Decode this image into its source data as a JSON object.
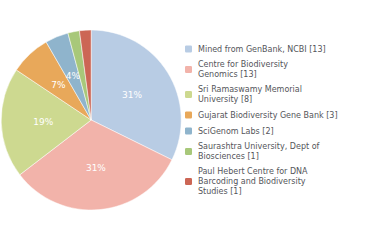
{
  "chart_data": {
    "type": "pie",
    "categories": [
      "Mined from GenBank, NCBI [13]",
      "Centre for Biodiversity\nGenomics [13]",
      "Sri Ramaswamy Memorial\nUniversity [8]",
      "Gujarat Biodiversity Gene Bank [3]",
      "SciGenom Labs [2]",
      "Saurashtra University, Dept of\nBiosciences [1]",
      "Paul Hebert Centre for DNA\nBarcoding and Biodiversity\nStudies [1]"
    ],
    "values": [
      31,
      31,
      19,
      7,
      4,
      2,
      2
    ],
    "value_labels": [
      "31%",
      "31%",
      "19%",
      "7%",
      "4%",
      null,
      null
    ],
    "colors": [
      "#b8cce4",
      "#f2b3aa",
      "#cdd990",
      "#e8a85a",
      "#8fb4cc",
      "#a8c87a",
      "#cc6655"
    ],
    "data_labels": true,
    "legend": "right"
  }
}
